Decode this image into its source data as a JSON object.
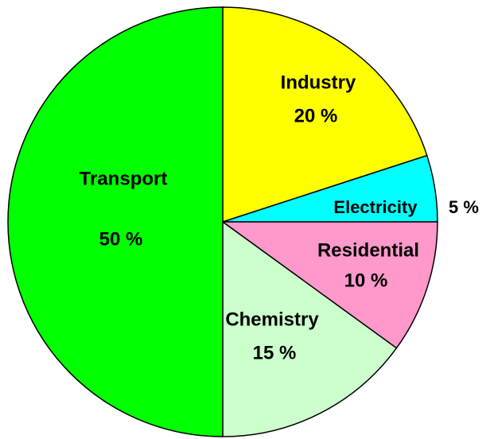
{
  "chart_data": {
    "type": "pie",
    "categories": [
      "Industry",
      "Electricity",
      "Residential",
      "Chemistry",
      "Transport"
    ],
    "values": [
      20,
      5,
      10,
      15,
      50
    ],
    "value_labels": [
      "20 %",
      "5 %",
      "10 %",
      "15 %",
      "50 %"
    ],
    "colors": [
      "#ffff00",
      "#00ffff",
      "#ff99cc",
      "#ccffcc",
      "#00ff00"
    ]
  }
}
